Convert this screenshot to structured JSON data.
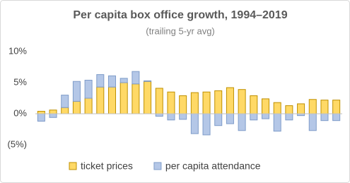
{
  "chart_data": {
    "type": "stacked-bar",
    "title": "Per capita box office growth, 1994–2019",
    "subtitle": "(trailing 5-yr avg)",
    "categories": [
      null,
      null,
      null,
      null,
      null,
      null,
      null,
      null,
      null,
      null,
      null,
      null,
      null,
      null,
      null,
      null,
      null,
      null,
      null,
      null,
      null,
      null,
      null,
      null,
      null,
      null
    ],
    "series": [
      {
        "name": "ticket prices",
        "color": "#ffd966",
        "values": [
          0.4,
          0.6,
          1.0,
          2.0,
          2.5,
          4.3,
          4.3,
          5.0,
          4.8,
          5.2,
          4.1,
          3.5,
          2.9,
          3.4,
          3.5,
          3.7,
          4.2,
          3.9,
          2.9,
          2.4,
          1.8,
          1.3,
          1.6,
          2.3,
          2.2,
          2.2
        ]
      },
      {
        "name": "per capita attendance",
        "color": "#b4c7e7",
        "values": [
          -1.2,
          -0.6,
          2.0,
          3.2,
          2.9,
          2.0,
          1.8,
          0.7,
          2.0,
          0.1,
          -0.4,
          -1.0,
          -0.9,
          -3.2,
          -3.4,
          -1.9,
          -1.6,
          -2.7,
          -1.0,
          -0.8,
          -2.8,
          -1.0,
          -0.3,
          -2.7,
          -1.1,
          -1.1
        ]
      }
    ],
    "ylim": [
      -5,
      10
    ],
    "yticks": [
      {
        "value": -5,
        "label": "(5%)"
      },
      {
        "value": 0,
        "label": "0%"
      },
      {
        "value": 5,
        "label": "5%"
      },
      {
        "value": 10,
        "label": "10%"
      }
    ],
    "grid": false,
    "legend": "bottom"
  }
}
